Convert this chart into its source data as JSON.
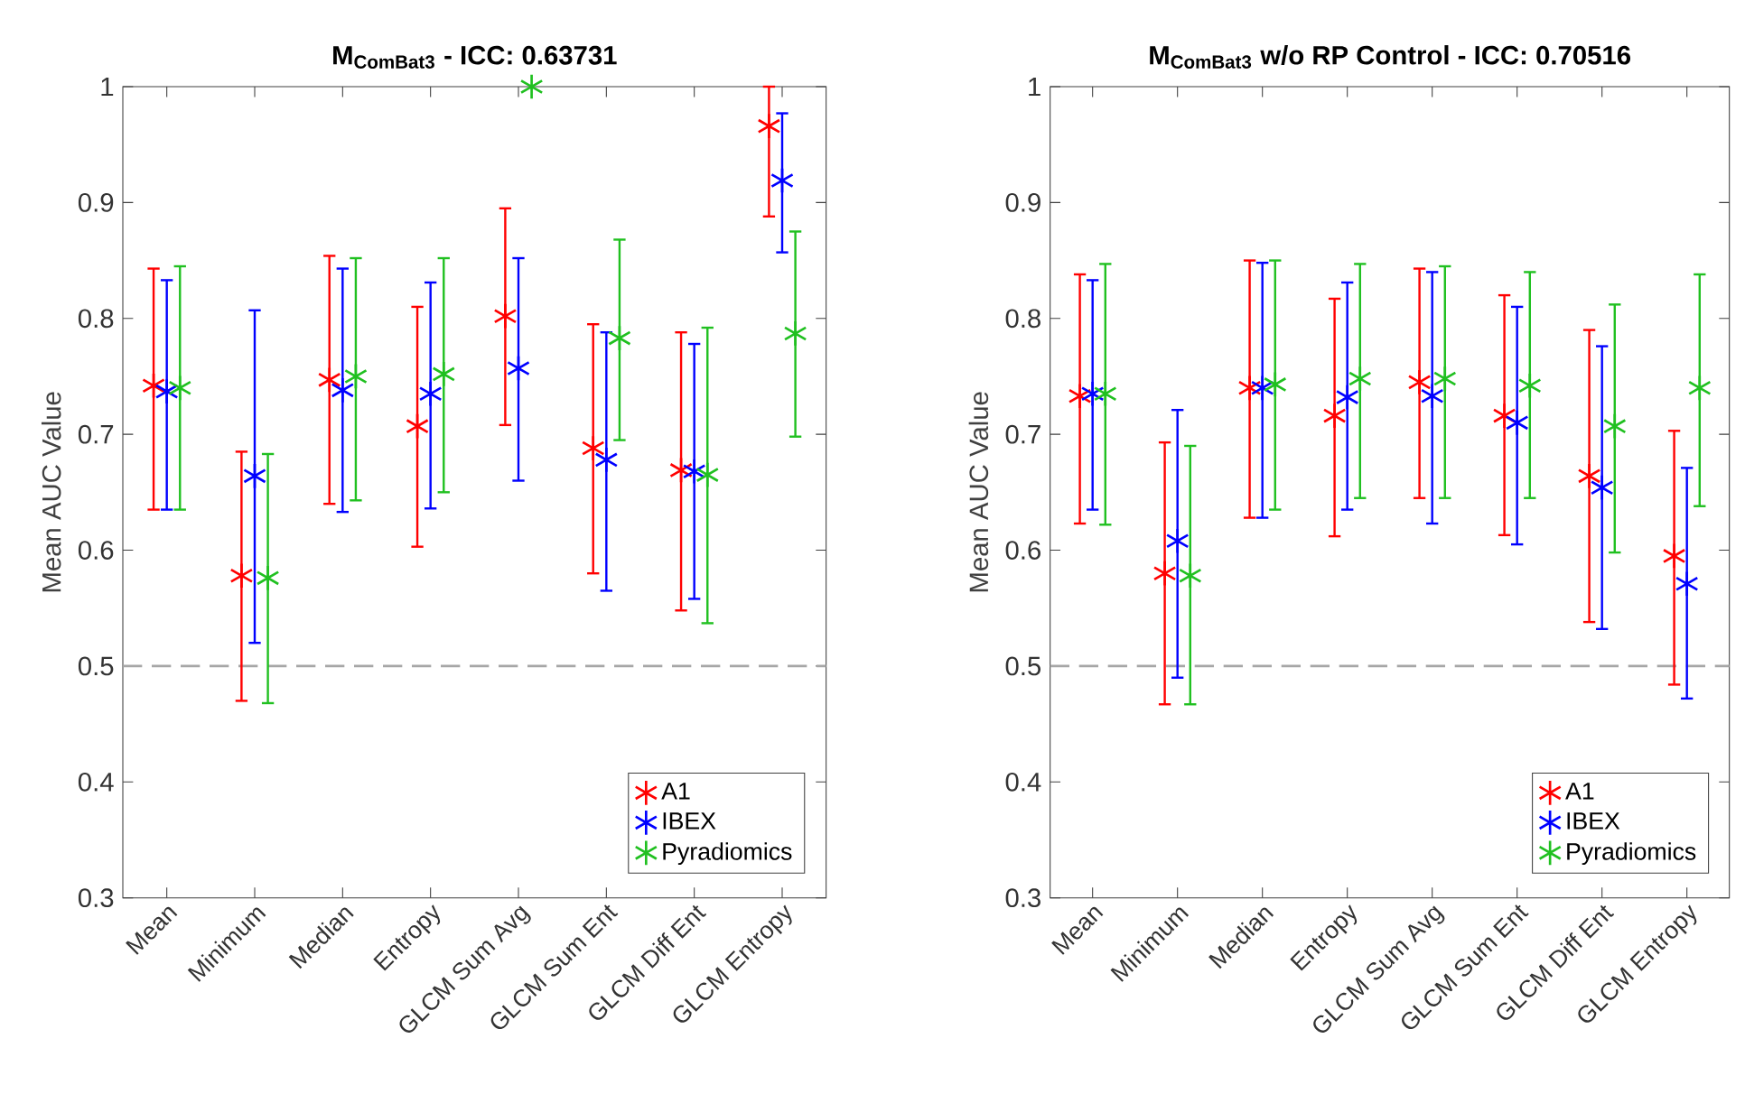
{
  "chart_data": [
    {
      "type": "scatter",
      "title": "M$_{ComBat3}$ - ICC: 0.63731",
      "ylabel": "Mean AUC Value",
      "categories": [
        "Mean",
        "Minimum",
        "Median",
        "Entropy",
        "GLCM Sum Avg",
        "GLCM Sum Ent",
        "GLCM Diff Ent",
        "GLCM Entropy"
      ],
      "ylim": [
        0.3,
        1
      ],
      "yticks": [
        0.3,
        0.4,
        0.5,
        0.6,
        0.7,
        0.8,
        0.9,
        1
      ],
      "marker": "cross",
      "legend": "bottom right",
      "ref_lines": [
        {
          "axis": "y",
          "value": 0.5,
          "color": "#a6a6a6",
          "line_style": "dashed"
        }
      ],
      "series": [
        {
          "name": "A1",
          "color": "#ff0000",
          "values": [
            0.742,
            0.578,
            0.747,
            0.707,
            0.802,
            0.688,
            0.669,
            0.966
          ],
          "errors": [
            [
              0.635,
              0.843
            ],
            [
              0.47,
              0.685
            ],
            [
              0.64,
              0.854
            ],
            [
              0.603,
              0.81
            ],
            [
              0.708,
              0.895
            ],
            [
              0.58,
              0.795
            ],
            [
              0.548,
              0.788
            ],
            [
              0.888,
              1.0
            ]
          ]
        },
        {
          "name": "IBEX",
          "color": "#0000ff",
          "values": [
            0.737,
            0.664,
            0.738,
            0.735,
            0.757,
            0.678,
            0.668,
            0.919
          ],
          "errors": [
            [
              0.635,
              0.833
            ],
            [
              0.52,
              0.807
            ],
            [
              0.633,
              0.843
            ],
            [
              0.636,
              0.831
            ],
            [
              0.66,
              0.852
            ],
            [
              0.565,
              0.788
            ],
            [
              0.558,
              0.778
            ],
            [
              0.857,
              0.977
            ]
          ]
        },
        {
          "name": "Pyradiomics",
          "color": "#20c020",
          "values": [
            0.74,
            0.576,
            0.75,
            0.752,
            1.0,
            0.783,
            0.665,
            0.787
          ],
          "errors": [
            [
              0.635,
              0.845
            ],
            [
              0.468,
              0.683
            ],
            [
              0.643,
              0.852
            ],
            [
              0.65,
              0.852
            ],
            null,
            [
              0.695,
              0.868
            ],
            [
              0.537,
              0.792
            ],
            [
              0.698,
              0.875
            ]
          ]
        }
      ]
    },
    {
      "type": "scatter",
      "title": "M$_{ComBat3}$ w/o RP Control - ICC: 0.70516",
      "ylabel": "Mean AUC Value",
      "categories": [
        "Mean",
        "Minimum",
        "Median",
        "Entropy",
        "GLCM Sum Avg",
        "GLCM Sum Ent",
        "GLCM Diff Ent",
        "GLCM Entropy"
      ],
      "ylim": [
        0.3,
        1
      ],
      "yticks": [
        0.3,
        0.4,
        0.5,
        0.6,
        0.7,
        0.8,
        0.9,
        1
      ],
      "marker": "cross",
      "legend": "bottom right",
      "ref_lines": [
        {
          "axis": "y",
          "value": 0.5,
          "color": "#a6a6a6",
          "line_style": "dashed"
        }
      ],
      "series": [
        {
          "name": "A1",
          "color": "#ff0000",
          "values": [
            0.733,
            0.58,
            0.74,
            0.716,
            0.745,
            0.716,
            0.664,
            0.595
          ],
          "errors": [
            [
              0.623,
              0.838
            ],
            [
              0.467,
              0.693
            ],
            [
              0.628,
              0.85
            ],
            [
              0.612,
              0.817
            ],
            [
              0.645,
              0.843
            ],
            [
              0.613,
              0.82
            ],
            [
              0.538,
              0.79
            ],
            [
              0.484,
              0.703
            ]
          ]
        },
        {
          "name": "IBEX",
          "color": "#0000ff",
          "values": [
            0.735,
            0.608,
            0.74,
            0.732,
            0.733,
            0.71,
            0.654,
            0.571
          ],
          "errors": [
            [
              0.635,
              0.833
            ],
            [
              0.49,
              0.721
            ],
            [
              0.628,
              0.848
            ],
            [
              0.635,
              0.831
            ],
            [
              0.623,
              0.84
            ],
            [
              0.605,
              0.81
            ],
            [
              0.532,
              0.776
            ],
            [
              0.472,
              0.671
            ]
          ]
        },
        {
          "name": "Pyradiomics",
          "color": "#20c020",
          "values": [
            0.735,
            0.578,
            0.743,
            0.748,
            0.748,
            0.742,
            0.707,
            0.74
          ],
          "errors": [
            [
              0.622,
              0.847
            ],
            [
              0.467,
              0.69
            ],
            [
              0.635,
              0.85
            ],
            [
              0.645,
              0.847
            ],
            [
              0.645,
              0.845
            ],
            [
              0.645,
              0.84
            ],
            [
              0.598,
              0.812
            ],
            [
              0.638,
              0.838
            ]
          ]
        }
      ]
    }
  ]
}
